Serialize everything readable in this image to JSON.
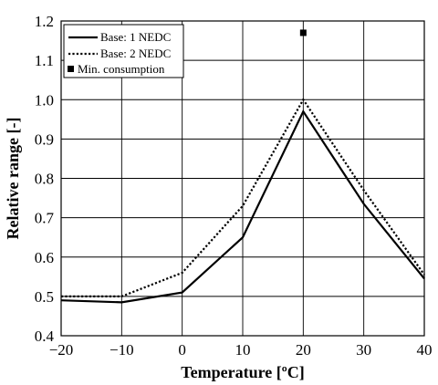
{
  "chart_data": {
    "type": "line",
    "xlabel": "Temperature [ºC]",
    "ylabel": "Relative range [-]",
    "xlim": [
      -20,
      40
    ],
    "ylim": [
      0.4,
      1.2
    ],
    "xticks": [
      -20,
      -10,
      0,
      10,
      20,
      30,
      40
    ],
    "yticks": [
      0.4,
      0.5,
      0.6,
      0.7,
      0.8,
      0.9,
      1.0,
      1.1,
      1.2
    ],
    "x_tick_labels": [
      "−20",
      "−10",
      "0",
      "10",
      "20",
      "30",
      "40"
    ],
    "y_tick_labels": [
      "0.4",
      "0.5",
      "0.6",
      "0.7",
      "0.8",
      "0.9",
      "1.0",
      "1.1",
      "1.2"
    ],
    "grid": true,
    "legend_position": "top-left",
    "series": [
      {
        "name": "Base: 1 NEDC",
        "style": "solid",
        "color": "#000000",
        "x": [
          -20,
          -10,
          0,
          10,
          20,
          30,
          40
        ],
        "y": [
          0.49,
          0.485,
          0.51,
          0.65,
          0.97,
          0.735,
          0.545
        ]
      },
      {
        "name": "Base: 2 NEDC",
        "style": "dotted",
        "color": "#000000",
        "x": [
          -20,
          -10,
          0,
          10,
          20,
          30,
          40
        ],
        "y": [
          0.5,
          0.5,
          0.56,
          0.73,
          1.0,
          0.77,
          0.555
        ]
      },
      {
        "name": "Min. consumption",
        "style": "marker",
        "marker": "square",
        "color": "#000000",
        "x": [
          20
        ],
        "y": [
          1.17
        ]
      }
    ]
  }
}
